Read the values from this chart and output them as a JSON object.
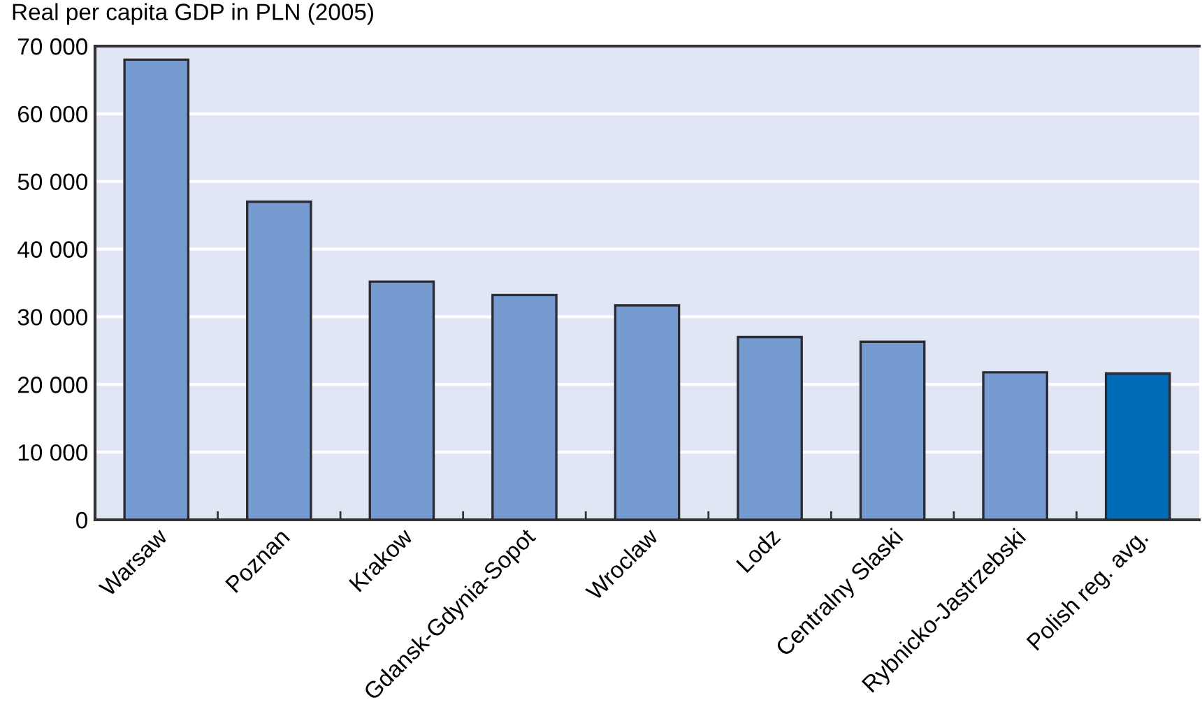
{
  "chart_data": {
    "type": "bar",
    "title": "Real per capita GDP in PLN (2005)",
    "categories": [
      "Warsaw",
      "Poznan",
      "Krakow",
      "Gdansk-Gdynia-Sopot",
      "Wroclaw",
      "Lodz",
      "Centralny Slaski",
      "Rybnicko-Jastrzebski",
      "Polish reg. avg."
    ],
    "values": [
      68000,
      47000,
      35200,
      33200,
      31700,
      27000,
      26300,
      21800,
      21600
    ],
    "colors": [
      "#759bd1",
      "#759bd1",
      "#759bd1",
      "#759bd1",
      "#759bd1",
      "#759bd1",
      "#759bd1",
      "#759bd1",
      "#006bb6"
    ],
    "ylim": [
      0,
      70000
    ],
    "yticks": [
      {
        "value": 0,
        "label": "0"
      },
      {
        "value": 10000,
        "label": "10 000"
      },
      {
        "value": 20000,
        "label": "20 000"
      },
      {
        "value": 30000,
        "label": "30 000"
      },
      {
        "value": 40000,
        "label": "40 000"
      },
      {
        "value": 50000,
        "label": "50 000"
      },
      {
        "value": 60000,
        "label": "60 000"
      },
      {
        "value": 70000,
        "label": "70 000"
      }
    ],
    "grid": "y"
  }
}
